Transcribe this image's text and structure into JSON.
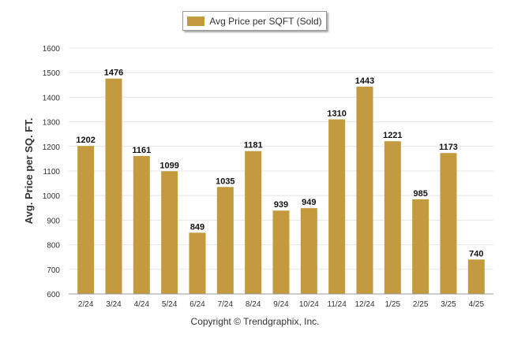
{
  "colors": {
    "bar": "#C39A3E",
    "grid": "#e6e6e6",
    "axis": "#999999",
    "text": "#333333"
  },
  "legend": {
    "label": "Avg Price per SQFT (Sold)"
  },
  "footer": {
    "copyright": "Copyright © Trendgraphix, Inc."
  },
  "chart_data": {
    "type": "bar",
    "ylabel": "Avg. Price per SQ. FT.",
    "ylim": [
      600,
      1600
    ],
    "yticks": [
      600,
      700,
      800,
      900,
      1000,
      1100,
      1200,
      1300,
      1400,
      1500,
      1600
    ],
    "grid": true,
    "legend_position": "top-center",
    "categories": [
      "2/24",
      "3/24",
      "4/24",
      "5/24",
      "6/24",
      "7/24",
      "8/24",
      "9/24",
      "10/24",
      "11/24",
      "12/24",
      "1/25",
      "2/25",
      "3/25",
      "4/25"
    ],
    "series": [
      {
        "name": "Avg Price per SQFT (Sold)",
        "values": [
          1202,
          1476,
          1161,
          1099,
          849,
          1035,
          1181,
          939,
          949,
          1310,
          1443,
          1221,
          985,
          1173,
          740
        ]
      }
    ]
  }
}
